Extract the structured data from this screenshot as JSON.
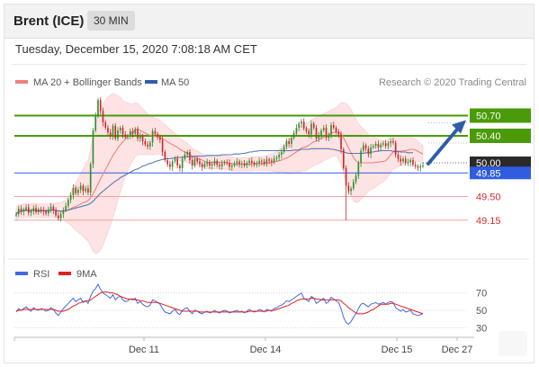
{
  "header": {
    "instrument": "Brent (ICE)",
    "timeframe": "30 MIN",
    "datetime": "Tuesday, December 15, 2020 7:08:18 AM CET"
  },
  "legend": {
    "ma20_label": "MA 20 + Bollinger Bands",
    "ma20_color": "#f08080",
    "ma50_label": "MA 50",
    "ma50_color": "#2f5da8",
    "credit": "Research © 2020 Trading Central"
  },
  "rsi_legend": {
    "rsi_label": "RSI",
    "rsi_color": "#4169e1",
    "ma9_label": "9MA",
    "ma9_color": "#e02020"
  },
  "chart_data": {
    "type": "candlestick",
    "ylim": [
      48.84,
      51.0
    ],
    "x_ticks": [
      "Dec 11",
      "Dec 14",
      "Dec 15",
      "Dec 27"
    ],
    "grid": false,
    "levels": [
      {
        "value": 50.7,
        "label": "50.70",
        "kind": "resistance",
        "color": "#4a9a0a"
      },
      {
        "value": 50.4,
        "label": "50.40",
        "kind": "resistance",
        "color": "#4a9a0a"
      },
      {
        "value": 50.0,
        "label": "50.00",
        "kind": "last-price",
        "color": "#333333"
      },
      {
        "value": 49.85,
        "label": "49.85",
        "kind": "pivot",
        "color": "#2f5de0"
      },
      {
        "value": 49.5,
        "label": "49.50",
        "kind": "support",
        "color": "#e05050"
      },
      {
        "value": 49.15,
        "label": "49.15",
        "kind": "support",
        "color": "#e05050"
      }
    ],
    "close": [
      49.24,
      49.32,
      49.28,
      49.31,
      49.34,
      49.26,
      49.29,
      49.33,
      49.27,
      49.31,
      49.3,
      49.28,
      49.25,
      49.31,
      49.35,
      49.3,
      49.22,
      49.18,
      49.24,
      49.3,
      49.36,
      49.45,
      49.52,
      49.63,
      49.55,
      49.6,
      49.66,
      49.58,
      49.62,
      49.56,
      49.98,
      50.48,
      50.7,
      50.93,
      50.77,
      50.6,
      50.52,
      50.45,
      50.4,
      50.55,
      50.36,
      50.48,
      50.52,
      50.42,
      50.38,
      50.4,
      50.47,
      50.43,
      50.5,
      50.36,
      50.4,
      50.32,
      50.27,
      50.24,
      50.3,
      50.47,
      50.43,
      50.38,
      50.34,
      50.16,
      50.04,
      49.98,
      49.94,
      50.02,
      50.06,
      49.96,
      49.92,
      50.06,
      50.12,
      50.16,
      50.04,
      49.96,
      50.06,
      50.02,
      49.98,
      49.94,
      49.98,
      50.01,
      49.96,
      49.98,
      50.03,
      49.97,
      49.95,
      49.99,
      50.01,
      50.0,
      49.94,
      49.96,
      49.99,
      50.02,
      49.98,
      49.99,
      49.96,
      50.0,
      50.03,
      50.0,
      49.97,
      49.99,
      50.03,
      50.02,
      49.98,
      50.05,
      50.03,
      50.01,
      50.06,
      50.08,
      50.12,
      50.16,
      50.24,
      50.32,
      50.28,
      50.37,
      50.44,
      50.52,
      50.58,
      50.61,
      50.51,
      50.47,
      50.42,
      50.58,
      50.52,
      50.36,
      50.41,
      50.48,
      50.52,
      50.37,
      50.42,
      50.56,
      50.52,
      50.46,
      50.42,
      50.2,
      49.92,
      49.66,
      49.58,
      49.62,
      49.72,
      49.81,
      50.0,
      50.18,
      50.26,
      50.21,
      50.13,
      50.23,
      50.25,
      50.28,
      50.23,
      50.27,
      50.29,
      50.25,
      50.29,
      50.32,
      50.3,
      50.12,
      50.06,
      50.02,
      50.06,
      50.0,
      50.01,
      50.04,
      49.97,
      49.95,
      49.93,
      49.95,
      49.96
    ],
    "ma20": [
      49.24,
      49.28,
      49.28,
      49.29,
      49.3,
      49.29,
      49.29,
      49.3,
      49.29,
      49.29,
      49.29,
      49.29,
      49.29,
      49.29,
      49.3,
      49.3,
      49.29,
      49.29,
      49.28,
      49.29,
      49.29,
      49.3,
      49.32,
      49.34,
      49.35,
      49.37,
      49.39,
      49.41,
      49.42,
      49.44,
      49.48,
      49.54,
      49.61,
      49.69,
      49.76,
      49.83,
      49.9,
      49.97,
      50.04,
      50.11,
      50.16,
      50.22,
      50.27,
      50.31,
      50.35,
      50.39,
      50.42,
      50.45,
      50.49,
      50.5,
      50.48,
      50.46,
      50.44,
      50.42,
      50.41,
      50.4,
      50.39,
      50.39,
      50.38,
      50.35,
      50.34,
      50.31,
      50.29,
      50.27,
      50.25,
      50.23,
      50.2,
      50.18,
      50.16,
      50.15,
      50.12,
      50.1,
      50.08,
      50.07,
      50.05,
      50.04,
      50.02,
      50.01,
      50.0,
      50.01,
      50.01,
      50.01,
      50.01,
      50.01,
      50.01,
      50.0,
      49.99,
      49.99,
      49.98,
      49.98,
      49.98,
      49.98,
      49.98,
      49.98,
      49.98,
      49.99,
      49.99,
      49.99,
      49.99,
      49.99,
      49.99,
      50.0,
      50.0,
      50.01,
      50.01,
      50.02,
      50.03,
      50.04,
      50.06,
      50.07,
      50.09,
      50.11,
      50.14,
      50.16,
      50.19,
      50.22,
      50.23,
      50.24,
      50.26,
      50.29,
      50.31,
      50.32,
      50.34,
      50.36,
      50.38,
      50.4,
      50.41,
      50.44,
      50.45,
      50.46,
      50.45,
      50.43,
      50.37,
      50.3,
      50.22,
      50.15,
      50.08,
      50.03,
      50.0,
      50.0,
      50.0,
      50.0,
      50.0,
      50.0,
      50.0,
      50.01,
      50.01,
      50.02,
      50.02,
      50.03,
      50.07,
      50.12,
      50.16,
      50.16,
      50.17,
      50.17,
      50.18,
      50.18,
      50.19,
      50.2,
      50.2,
      50.19,
      50.17,
      50.15,
      50.13
    ],
    "ma50": [
      49.24,
      49.28,
      49.28,
      49.29,
      49.3,
      49.29,
      49.29,
      49.3,
      49.29,
      49.29,
      49.29,
      49.29,
      49.29,
      49.29,
      49.3,
      49.3,
      49.29,
      49.29,
      49.28,
      49.29,
      49.29,
      49.3,
      49.31,
      49.32,
      49.33,
      49.34,
      49.35,
      49.36,
      49.37,
      49.38,
      49.4,
      49.43,
      49.47,
      49.51,
      49.55,
      49.58,
      49.61,
      49.64,
      49.67,
      49.7,
      49.73,
      49.75,
      49.78,
      49.8,
      49.82,
      49.84,
      49.86,
      49.88,
      49.9,
      49.91,
      49.93,
      49.95,
      49.96,
      49.98,
      49.99,
      50.0,
      50.02,
      50.03,
      50.04,
      50.05,
      50.06,
      50.06,
      50.06,
      50.07,
      50.07,
      50.08,
      50.08,
      50.08,
      50.09,
      50.09,
      50.09,
      50.09,
      50.1,
      50.1,
      50.1,
      50.1,
      50.1,
      50.11,
      50.11,
      50.11,
      50.11,
      50.11,
      50.11,
      50.12,
      50.12,
      50.12,
      50.12,
      50.12,
      50.13,
      50.13,
      50.13,
      50.14,
      50.14,
      50.15,
      50.16,
      50.16,
      50.17,
      50.17,
      50.18,
      50.18,
      50.18,
      50.18,
      50.18,
      50.18,
      50.18,
      50.18,
      50.18,
      50.18,
      50.18,
      50.18,
      50.18,
      50.18,
      50.19,
      50.19,
      50.19,
      50.2,
      50.2,
      50.2,
      50.2,
      50.21,
      50.21,
      50.21,
      50.21,
      50.21,
      50.21,
      50.21,
      50.21,
      50.2,
      50.2,
      50.19,
      50.18,
      50.17,
      50.16,
      50.15,
      50.14,
      50.14,
      50.14,
      50.14,
      50.14,
      50.14,
      50.14,
      50.15,
      50.15,
      50.16,
      50.16,
      50.17,
      50.17,
      50.18,
      50.18,
      50.18,
      50.18,
      50.18,
      50.17,
      50.17,
      50.17,
      50.16,
      50.16,
      50.16,
      50.15,
      50.15,
      50.15
    ],
    "bb_width": [
      0.1,
      0.1,
      0.1,
      0.1,
      0.1,
      0.1,
      0.1,
      0.1,
      0.1,
      0.1,
      0.1,
      0.1,
      0.1,
      0.1,
      0.1,
      0.1,
      0.11,
      0.12,
      0.13,
      0.14,
      0.16,
      0.2,
      0.24,
      0.3,
      0.35,
      0.4,
      0.45,
      0.5,
      0.55,
      0.6,
      0.72,
      0.85,
      0.95,
      1.02,
      1.05,
      1.05,
      1.03,
      1.0,
      0.96,
      0.92,
      0.85,
      0.78,
      0.7,
      0.62,
      0.55,
      0.5,
      0.45,
      0.42,
      0.4,
      0.38,
      0.36,
      0.34,
      0.32,
      0.3,
      0.29,
      0.28,
      0.27,
      0.26,
      0.25,
      0.24,
      0.23,
      0.22,
      0.21,
      0.2,
      0.19,
      0.18,
      0.17,
      0.16,
      0.15,
      0.14,
      0.13,
      0.12,
      0.11,
      0.11,
      0.1,
      0.1,
      0.1,
      0.1,
      0.1,
      0.1,
      0.1,
      0.1,
      0.1,
      0.1,
      0.1,
      0.1,
      0.1,
      0.1,
      0.1,
      0.1,
      0.1,
      0.1,
      0.1,
      0.1,
      0.1,
      0.1,
      0.1,
      0.1,
      0.1,
      0.1,
      0.1,
      0.11,
      0.12,
      0.13,
      0.14,
      0.15,
      0.17,
      0.19,
      0.21,
      0.23,
      0.25,
      0.27,
      0.29,
      0.31,
      0.33,
      0.34,
      0.35,
      0.35,
      0.35,
      0.35,
      0.35,
      0.35,
      0.35,
      0.35,
      0.35,
      0.35,
      0.35,
      0.35,
      0.35,
      0.36,
      0.4,
      0.46,
      0.52,
      0.58,
      0.62,
      0.64,
      0.64,
      0.62,
      0.58,
      0.54,
      0.5,
      0.46,
      0.42,
      0.4,
      0.38,
      0.36,
      0.34,
      0.32,
      0.3,
      0.28,
      0.27,
      0.26,
      0.25,
      0.24,
      0.23,
      0.22,
      0.21,
      0.2,
      0.19,
      0.18,
      0.17,
      0.16,
      0.15,
      0.14,
      0.13,
      0.13
    ],
    "rsi": {
      "ylim": [
        20,
        80
      ],
      "ticks": [
        70,
        50,
        30
      ],
      "rsi": [
        48,
        52,
        50,
        52,
        54,
        51,
        49,
        53,
        51,
        50,
        52,
        51,
        49,
        50,
        53,
        51,
        47,
        44,
        48,
        52,
        55,
        58,
        61,
        64,
        60,
        62,
        64,
        59,
        61,
        58,
        66,
        72,
        75,
        80,
        74,
        70,
        68,
        66,
        64,
        68,
        62,
        65,
        66,
        62,
        60,
        61,
        63,
        62,
        64,
        58,
        60,
        57,
        55,
        54,
        56,
        62,
        61,
        59,
        57,
        52,
        48,
        47,
        46,
        49,
        51,
        47,
        45,
        50,
        52,
        53,
        49,
        46,
        50,
        49,
        47,
        46,
        48,
        49,
        47,
        48,
        50,
        48,
        47,
        49,
        50,
        49,
        47,
        48,
        49,
        50,
        48,
        49,
        47,
        49,
        51,
        49,
        48,
        49,
        51,
        50,
        48,
        51,
        50,
        49,
        52,
        53,
        55,
        56,
        58,
        61,
        60,
        62,
        64,
        66,
        68,
        70,
        64,
        62,
        60,
        66,
        64,
        58,
        60,
        62,
        64,
        58,
        60,
        65,
        63,
        61,
        59,
        52,
        42,
        36,
        34,
        37,
        42,
        46,
        52,
        57,
        58,
        56,
        54,
        57,
        58,
        59,
        57,
        58,
        59,
        57,
        59,
        60,
        59,
        53,
        51,
        49,
        51,
        48,
        49,
        50,
        46,
        45,
        44,
        45,
        46
      ],
      "ma9": [
        49,
        50,
        50,
        51,
        51,
        51,
        51,
        51,
        51,
        51,
        51,
        51,
        51,
        51,
        51,
        51,
        50,
        49,
        49,
        49,
        50,
        51,
        53,
        55,
        56,
        58,
        59,
        60,
        61,
        61,
        62,
        64,
        66,
        68,
        70,
        71,
        71,
        71,
        70,
        70,
        69,
        68,
        66,
        65,
        64,
        63,
        63,
        63,
        62,
        62,
        61,
        61,
        60,
        59,
        59,
        59,
        59,
        59,
        58,
        57,
        56,
        55,
        54,
        53,
        52,
        51,
        50,
        49,
        49,
        49,
        49,
        49,
        49,
        49,
        48,
        48,
        48,
        48,
        48,
        48,
        48,
        48,
        48,
        48,
        48,
        48,
        48,
        48,
        48,
        48,
        48,
        48,
        48,
        48,
        49,
        49,
        49,
        49,
        49,
        49,
        49,
        49,
        50,
        50,
        50,
        51,
        52,
        53,
        54,
        55,
        56,
        58,
        59,
        61,
        62,
        63,
        63,
        63,
        63,
        64,
        64,
        63,
        63,
        62,
        62,
        62,
        62,
        62,
        62,
        62,
        62,
        61,
        58,
        56,
        53,
        51,
        49,
        47,
        46,
        46,
        46,
        47,
        48,
        50,
        51,
        53,
        55,
        57,
        57,
        57,
        57,
        58,
        58,
        57,
        56,
        55,
        54,
        53,
        52,
        51,
        50,
        49,
        48,
        47,
        46
      ]
    }
  }
}
